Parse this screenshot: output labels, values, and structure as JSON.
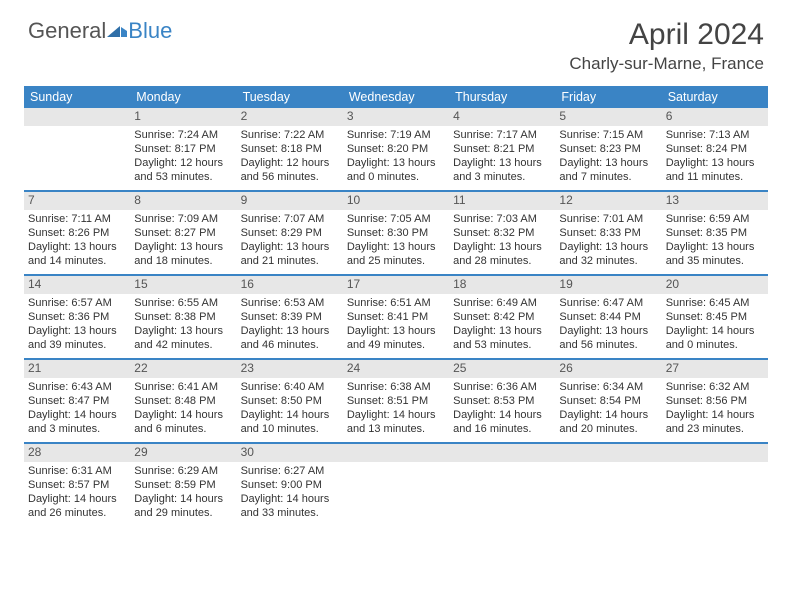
{
  "colors": {
    "header_bar": "#3a84c5",
    "daynum_bg": "#e7e7e7",
    "text": "#333333",
    "logo_gray": "#555555",
    "logo_blue": "#3a84c5",
    "background": "#ffffff"
  },
  "logo": {
    "part1": "General",
    "part2": "Blue"
  },
  "title": "April 2024",
  "location": "Charly-sur-Marne, France",
  "weekdays": [
    "Sunday",
    "Monday",
    "Tuesday",
    "Wednesday",
    "Thursday",
    "Friday",
    "Saturday"
  ],
  "weeks": [
    [
      {
        "n": "",
        "empty": true
      },
      {
        "n": "1",
        "sr": "Sunrise: 7:24 AM",
        "ss": "Sunset: 8:17 PM",
        "dl1": "Daylight: 12 hours",
        "dl2": "and 53 minutes."
      },
      {
        "n": "2",
        "sr": "Sunrise: 7:22 AM",
        "ss": "Sunset: 8:18 PM",
        "dl1": "Daylight: 12 hours",
        "dl2": "and 56 minutes."
      },
      {
        "n": "3",
        "sr": "Sunrise: 7:19 AM",
        "ss": "Sunset: 8:20 PM",
        "dl1": "Daylight: 13 hours",
        "dl2": "and 0 minutes."
      },
      {
        "n": "4",
        "sr": "Sunrise: 7:17 AM",
        "ss": "Sunset: 8:21 PM",
        "dl1": "Daylight: 13 hours",
        "dl2": "and 3 minutes."
      },
      {
        "n": "5",
        "sr": "Sunrise: 7:15 AM",
        "ss": "Sunset: 8:23 PM",
        "dl1": "Daylight: 13 hours",
        "dl2": "and 7 minutes."
      },
      {
        "n": "6",
        "sr": "Sunrise: 7:13 AM",
        "ss": "Sunset: 8:24 PM",
        "dl1": "Daylight: 13 hours",
        "dl2": "and 11 minutes."
      }
    ],
    [
      {
        "n": "7",
        "sr": "Sunrise: 7:11 AM",
        "ss": "Sunset: 8:26 PM",
        "dl1": "Daylight: 13 hours",
        "dl2": "and 14 minutes."
      },
      {
        "n": "8",
        "sr": "Sunrise: 7:09 AM",
        "ss": "Sunset: 8:27 PM",
        "dl1": "Daylight: 13 hours",
        "dl2": "and 18 minutes."
      },
      {
        "n": "9",
        "sr": "Sunrise: 7:07 AM",
        "ss": "Sunset: 8:29 PM",
        "dl1": "Daylight: 13 hours",
        "dl2": "and 21 minutes."
      },
      {
        "n": "10",
        "sr": "Sunrise: 7:05 AM",
        "ss": "Sunset: 8:30 PM",
        "dl1": "Daylight: 13 hours",
        "dl2": "and 25 minutes."
      },
      {
        "n": "11",
        "sr": "Sunrise: 7:03 AM",
        "ss": "Sunset: 8:32 PM",
        "dl1": "Daylight: 13 hours",
        "dl2": "and 28 minutes."
      },
      {
        "n": "12",
        "sr": "Sunrise: 7:01 AM",
        "ss": "Sunset: 8:33 PM",
        "dl1": "Daylight: 13 hours",
        "dl2": "and 32 minutes."
      },
      {
        "n": "13",
        "sr": "Sunrise: 6:59 AM",
        "ss": "Sunset: 8:35 PM",
        "dl1": "Daylight: 13 hours",
        "dl2": "and 35 minutes."
      }
    ],
    [
      {
        "n": "14",
        "sr": "Sunrise: 6:57 AM",
        "ss": "Sunset: 8:36 PM",
        "dl1": "Daylight: 13 hours",
        "dl2": "and 39 minutes."
      },
      {
        "n": "15",
        "sr": "Sunrise: 6:55 AM",
        "ss": "Sunset: 8:38 PM",
        "dl1": "Daylight: 13 hours",
        "dl2": "and 42 minutes."
      },
      {
        "n": "16",
        "sr": "Sunrise: 6:53 AM",
        "ss": "Sunset: 8:39 PM",
        "dl1": "Daylight: 13 hours",
        "dl2": "and 46 minutes."
      },
      {
        "n": "17",
        "sr": "Sunrise: 6:51 AM",
        "ss": "Sunset: 8:41 PM",
        "dl1": "Daylight: 13 hours",
        "dl2": "and 49 minutes."
      },
      {
        "n": "18",
        "sr": "Sunrise: 6:49 AM",
        "ss": "Sunset: 8:42 PM",
        "dl1": "Daylight: 13 hours",
        "dl2": "and 53 minutes."
      },
      {
        "n": "19",
        "sr": "Sunrise: 6:47 AM",
        "ss": "Sunset: 8:44 PM",
        "dl1": "Daylight: 13 hours",
        "dl2": "and 56 minutes."
      },
      {
        "n": "20",
        "sr": "Sunrise: 6:45 AM",
        "ss": "Sunset: 8:45 PM",
        "dl1": "Daylight: 14 hours",
        "dl2": "and 0 minutes."
      }
    ],
    [
      {
        "n": "21",
        "sr": "Sunrise: 6:43 AM",
        "ss": "Sunset: 8:47 PM",
        "dl1": "Daylight: 14 hours",
        "dl2": "and 3 minutes."
      },
      {
        "n": "22",
        "sr": "Sunrise: 6:41 AM",
        "ss": "Sunset: 8:48 PM",
        "dl1": "Daylight: 14 hours",
        "dl2": "and 6 minutes."
      },
      {
        "n": "23",
        "sr": "Sunrise: 6:40 AM",
        "ss": "Sunset: 8:50 PM",
        "dl1": "Daylight: 14 hours",
        "dl2": "and 10 minutes."
      },
      {
        "n": "24",
        "sr": "Sunrise: 6:38 AM",
        "ss": "Sunset: 8:51 PM",
        "dl1": "Daylight: 14 hours",
        "dl2": "and 13 minutes."
      },
      {
        "n": "25",
        "sr": "Sunrise: 6:36 AM",
        "ss": "Sunset: 8:53 PM",
        "dl1": "Daylight: 14 hours",
        "dl2": "and 16 minutes."
      },
      {
        "n": "26",
        "sr": "Sunrise: 6:34 AM",
        "ss": "Sunset: 8:54 PM",
        "dl1": "Daylight: 14 hours",
        "dl2": "and 20 minutes."
      },
      {
        "n": "27",
        "sr": "Sunrise: 6:32 AM",
        "ss": "Sunset: 8:56 PM",
        "dl1": "Daylight: 14 hours",
        "dl2": "and 23 minutes."
      }
    ],
    [
      {
        "n": "28",
        "sr": "Sunrise: 6:31 AM",
        "ss": "Sunset: 8:57 PM",
        "dl1": "Daylight: 14 hours",
        "dl2": "and 26 minutes."
      },
      {
        "n": "29",
        "sr": "Sunrise: 6:29 AM",
        "ss": "Sunset: 8:59 PM",
        "dl1": "Daylight: 14 hours",
        "dl2": "and 29 minutes."
      },
      {
        "n": "30",
        "sr": "Sunrise: 6:27 AM",
        "ss": "Sunset: 9:00 PM",
        "dl1": "Daylight: 14 hours",
        "dl2": "and 33 minutes."
      },
      {
        "n": "",
        "empty": true
      },
      {
        "n": "",
        "empty": true
      },
      {
        "n": "",
        "empty": true
      },
      {
        "n": "",
        "empty": true
      }
    ]
  ]
}
